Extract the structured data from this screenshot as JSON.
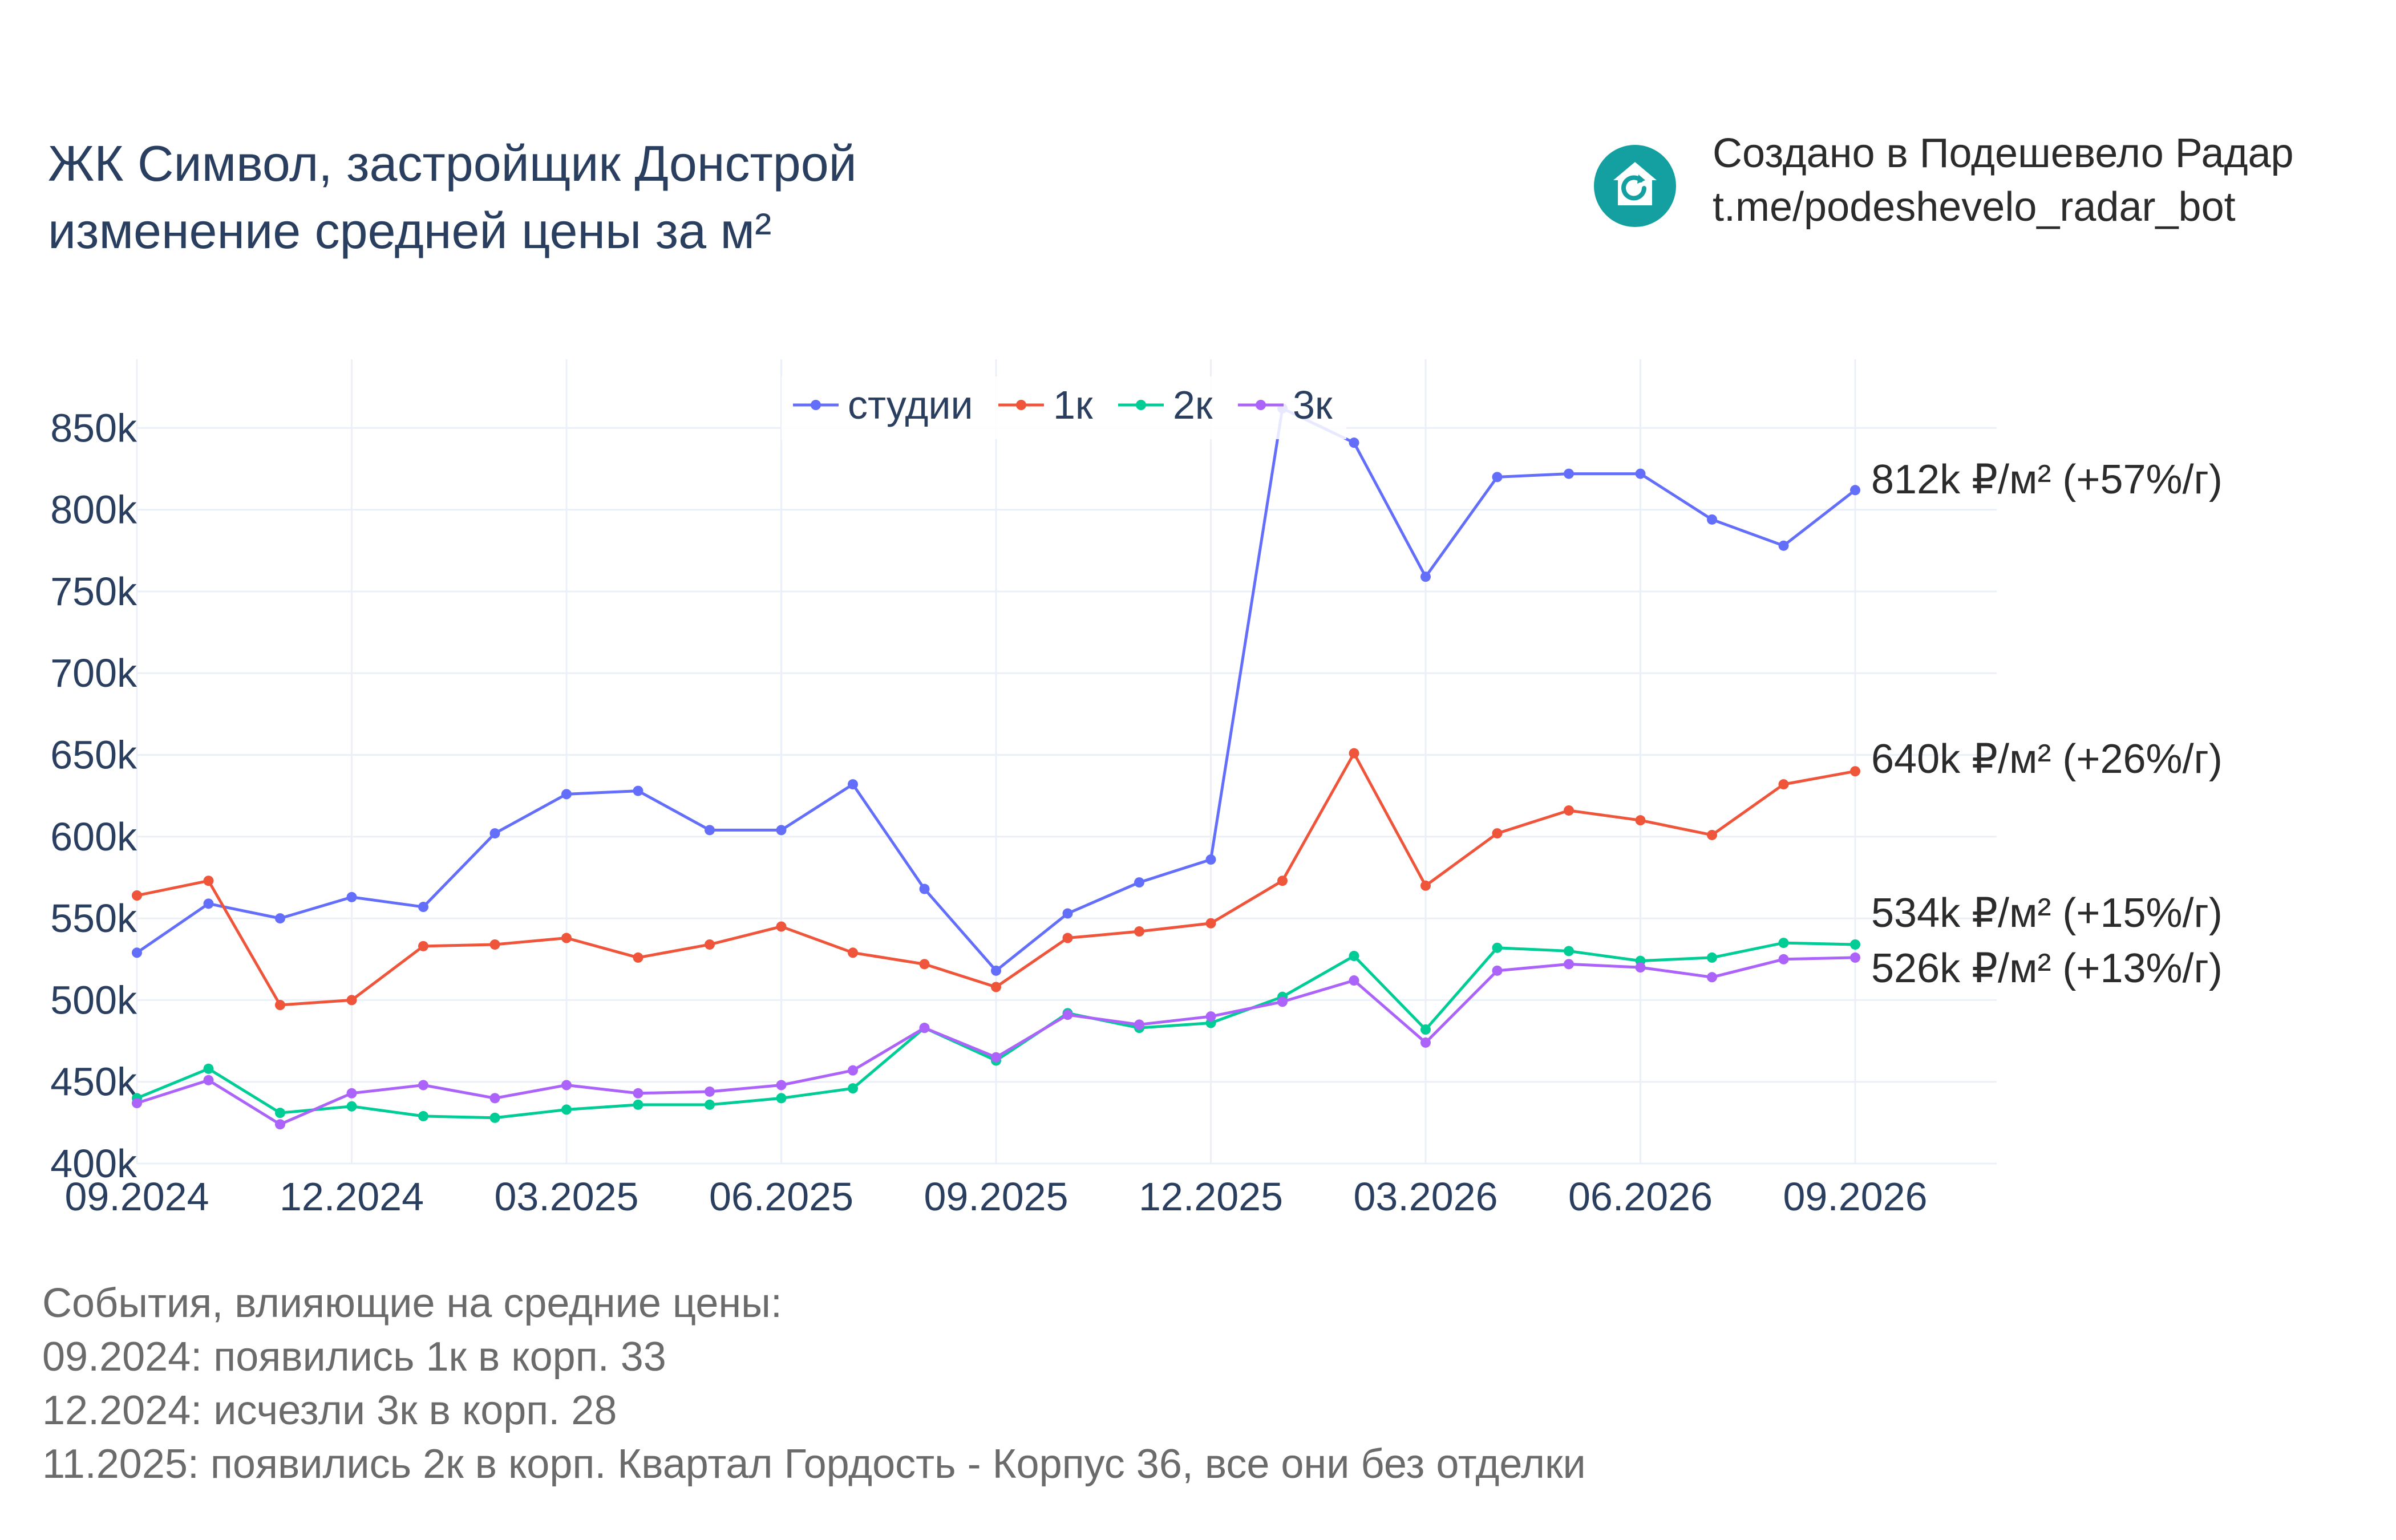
{
  "header": {
    "title_line1": "ЖК Символ, застройщик Донстрой",
    "title_line2": "изменение средней цены за м²"
  },
  "branding": {
    "logo_icon": "house-refresh-icon",
    "logo_color": "#14a0a0",
    "line1": "Создано в Подешевело Радар",
    "line2": "t.me/podeshevelo_radar_bot"
  },
  "chart_data": {
    "type": "line",
    "x": [
      "09.2024",
      "10.2024",
      "11.2024",
      "12.2024",
      "01.2025",
      "02.2025",
      "03.2025",
      "04.2025",
      "05.2025",
      "06.2025",
      "07.2025",
      "08.2025",
      "09.2025",
      "10.2025",
      "11.2025",
      "12.2025",
      "01.2026",
      "02.2026",
      "03.2026",
      "04.2026",
      "05.2026",
      "06.2026",
      "07.2026",
      "08.2026",
      "09.2026"
    ],
    "xticks": [
      "09.2024",
      "12.2024",
      "03.2025",
      "06.2025",
      "09.2025",
      "12.2025",
      "03.2026",
      "06.2026",
      "09.2026"
    ],
    "yticks": [
      "400k",
      "450k",
      "500k",
      "550k",
      "600k",
      "650k",
      "700k",
      "750k",
      "800k",
      "850k"
    ],
    "ylim": [
      400,
      892
    ],
    "grid": true,
    "legend_position": "top-center",
    "series": [
      {
        "name": "студии",
        "color": "#636efa",
        "values": [
          529,
          559,
          550,
          563,
          557,
          602,
          626,
          628,
          604,
          604,
          632,
          568,
          518,
          553,
          572,
          586,
          862,
          841,
          759,
          820,
          822,
          822,
          794,
          778,
          812
        ],
        "end_label": "812k ₽/м² (+57%/г)"
      },
      {
        "name": "1к",
        "color": "#ef553b",
        "values": [
          564,
          573,
          497,
          500,
          533,
          534,
          538,
          526,
          534,
          545,
          529,
          522,
          508,
          538,
          542,
          547,
          573,
          651,
          570,
          602,
          616,
          610,
          601,
          632,
          640
        ],
        "end_label": "640k ₽/м² (+26%/г)"
      },
      {
        "name": "2к",
        "color": "#00cc96",
        "values": [
          440,
          458,
          431,
          435,
          429,
          428,
          433,
          436,
          436,
          440,
          446,
          483,
          463,
          492,
          483,
          486,
          502,
          527,
          482,
          532,
          530,
          524,
          526,
          535,
          534
        ],
        "end_label": "534k ₽/м² (+15%/г)"
      },
      {
        "name": "3к",
        "color": "#ab63fa",
        "values": [
          437,
          451,
          424,
          443,
          448,
          440,
          448,
          443,
          444,
          448,
          457,
          483,
          465,
          491,
          485,
          490,
          499,
          512,
          474,
          518,
          522,
          520,
          514,
          525,
          526
        ],
        "end_label": "526k ₽/м² (+13%/г)"
      }
    ]
  },
  "events": {
    "heading": "События, влияющие на средние цены:",
    "items": [
      "09.2024: появились 1к в корп. 33",
      "12.2024: исчезли 3к в корп. 28",
      "11.2025: появились 2к в корп. Квартал Гордость - Корпус 36, все они без отделки"
    ]
  }
}
